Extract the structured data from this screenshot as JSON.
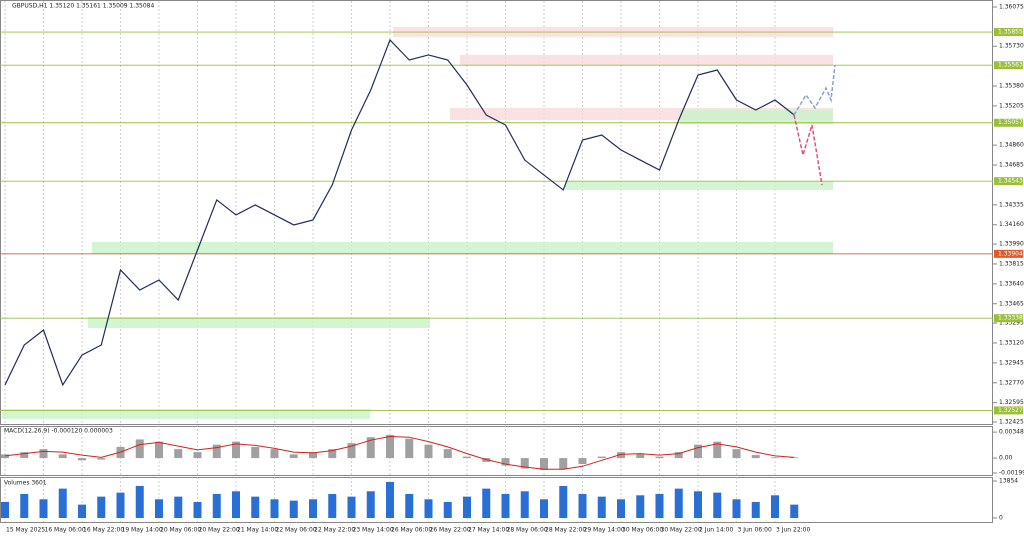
{
  "chart_data": [
    {
      "type": "line",
      "title": "GBPUSD,H1  1.35120 1.35161 1.35009 1.35084",
      "categories": [
        "15 May 2025",
        null,
        "16 May 06:00",
        null,
        "16 May 22:00",
        null,
        "19 May 14:00",
        null,
        "20 May 06:00",
        null,
        "20 May 22:00",
        null,
        "21 May 14:00",
        null,
        "22 May 06:00",
        null,
        "22 May 22:00",
        null,
        "23 May 14:00",
        null,
        "26 May 06:00",
        null,
        "26 May 22:00",
        null,
        "27 May 14:00",
        null,
        "28 May 06:00",
        null,
        "28 May 22:00",
        null,
        "29 May 14:00",
        null,
        "30 May 06:00",
        null,
        "30 May 22:00",
        null,
        "2 Jun 14:00",
        null,
        "3 Jun 06:00",
        null,
        "3 Jun 22:00",
        null
      ],
      "series": [
        {
          "name": "GBPUSD",
          "color": "#1f2d5a",
          "values": [
            1.32751,
            1.33102,
            1.33234,
            1.32751,
            1.33014,
            1.33102,
            1.33762,
            1.33586,
            1.33674,
            1.33498,
            1.33938,
            1.34378,
            1.34246,
            1.34334,
            1.34246,
            1.34158,
            1.34202,
            1.3451,
            1.34993,
            1.35345,
            1.35785,
            1.35609,
            1.35653,
            1.35609,
            1.35389,
            1.35125,
            1.35037,
            1.34729,
            1.34597,
            1.34466,
            1.34905,
            1.34949,
            1.34817,
            1.34729,
            1.34641,
            1.35081,
            1.35477,
            1.35521,
            1.35257,
            1.35169,
            1.35257,
            1.35125
          ]
        }
      ],
      "ylim": [
        1.32425,
        1.36075
      ],
      "yticks": [
        1.36075,
        {
          "value": 1.3573,
          "label": "1.35730"
        },
        {
          "value": 1.3538,
          "label": "1.35380"
        },
        1.35205,
        {
          "value": 1.3486,
          "label": "1.34860"
        },
        1.34685,
        1.34335,
        {
          "value": 1.3416,
          "label": "1.34160"
        },
        {
          "value": 1.3399,
          "label": "1.33990"
        },
        1.33815,
        {
          "value": 1.3364,
          "label": "1.33640"
        },
        1.33465,
        1.33295,
        {
          "value": 1.3312,
          "label": "1.33120"
        },
        1.32945,
        {
          "value": 1.3277,
          "label": "1.32770"
        },
        1.32595,
        1.32425
      ],
      "levels": [
        {
          "value": 1.35855,
          "color": "#9cbf3a"
        },
        {
          "value": 1.35563,
          "color": "#9cbf3a"
        },
        {
          "value": 1.35057,
          "color": "#9cbf3a"
        },
        {
          "value": 1.34543,
          "color": "#9cbf3a"
        },
        {
          "value": 1.33904,
          "color": "#e05a2b"
        },
        {
          "value": 1.33338,
          "color": "#9cbf3a"
        },
        {
          "value": 1.32527,
          "color": "#9cbf3a"
        }
      ],
      "zones": [
        {
          "low": 1.35812,
          "high": 1.359,
          "color": "#f9d9dc"
        },
        {
          "low": 1.35565,
          "high": 1.35653,
          "color": "#f9d9dc"
        },
        {
          "low": 1.35081,
          "high": 1.35187,
          "color": "#f9d9dc"
        },
        {
          "low": 1.35046,
          "high": 1.35169,
          "color": "#c8f2c8"
        },
        {
          "low": 1.34466,
          "high": 1.34545,
          "color": "#c8f2c8"
        },
        {
          "low": 1.33903,
          "high": 1.34008,
          "color": "#c8f2c8"
        },
        {
          "low": 1.33252,
          "high": 1.33349,
          "color": "#c8f2c8"
        },
        {
          "low": 1.32452,
          "high": 1.3254,
          "color": "#c8f2c8"
        }
      ]
    },
    {
      "type": "bar",
      "title": "MACD(12,26,9) -0.000120 0.000003",
      "series": [
        {
          "name": "MACD",
          "color": "#a0a0a0",
          "values": [
            0.0005,
            0.0008,
            0.0012,
            0.0005,
            -0.0003,
            -0.0002,
            0.0015,
            0.0025,
            0.0022,
            0.0012,
            0.0008,
            0.0018,
            0.0022,
            0.0015,
            0.0012,
            0.0005,
            0.0008,
            0.0012,
            0.002,
            0.0028,
            0.0031,
            0.0026,
            0.0018,
            0.0012,
            0.0002,
            -0.0005,
            -0.001,
            -0.0014,
            -0.0016,
            -0.0015,
            -0.0008,
            0.0002,
            0.0008,
            0.0006,
            0.0002,
            0.0008,
            0.0018,
            0.0022,
            0.0012,
            0.0004,
            0.0001,
            0.0001
          ]
        },
        {
          "name": "Signal",
          "color": "#d62020",
          "values": [
            0.0003,
            0.0006,
            0.0009,
            0.0008,
            0.0004,
            0.0001,
            0.0008,
            0.0018,
            0.0021,
            0.0016,
            0.0011,
            0.0014,
            0.0019,
            0.0017,
            0.0013,
            0.0008,
            0.0007,
            0.001,
            0.0016,
            0.0024,
            0.0029,
            0.0028,
            0.0022,
            0.0015,
            0.0006,
            -0.0002,
            -0.0008,
            -0.0012,
            -0.0015,
            -0.0015,
            -0.0011,
            -0.0003,
            0.0005,
            0.0006,
            0.0004,
            0.0006,
            0.0014,
            0.0019,
            0.0015,
            0.0008,
            0.0003,
            0.0001
          ]
        }
      ],
      "ylim": [
        -0.0024,
        0.0043
      ],
      "yticks": [
        0.003481,
        {
          "value": 0,
          "label": "0.00"
        },
        -0.001998
      ]
    },
    {
      "type": "bar",
      "title": "Volumes 3601",
      "series": [
        {
          "name": "Volumes",
          "color": "#2a6fd6",
          "values": [
            6000,
            9000,
            7000,
            11000,
            5000,
            8000,
            9500,
            12000,
            7000,
            8000,
            6000,
            9000,
            10000,
            8000,
            7000,
            6500,
            7000,
            9000,
            8000,
            10000,
            13500,
            9000,
            7000,
            6000,
            8000,
            11000,
            9000,
            10000,
            7000,
            12000,
            9000,
            8000,
            7000,
            8500,
            9000,
            11000,
            10000,
            9500,
            7000,
            6000,
            8500,
            5000
          ]
        }
      ],
      "ylim": [
        0,
        13854
      ],
      "yticks": [
        13854,
        0
      ]
    }
  ]
}
